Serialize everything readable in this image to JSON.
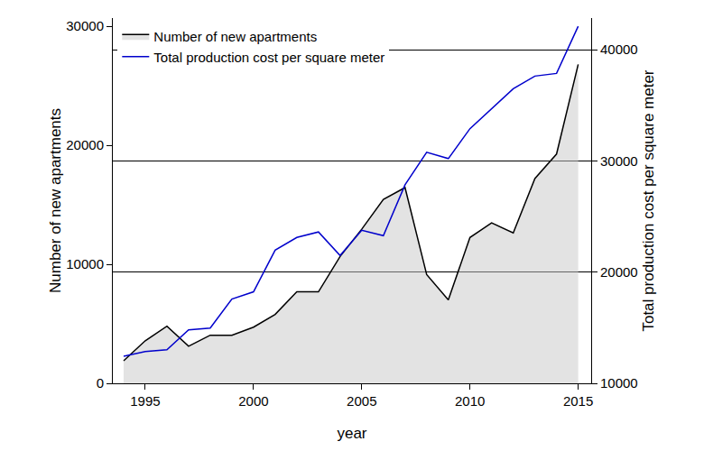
{
  "chart_data": {
    "type": "line",
    "x_label": "year",
    "y_label": "Number of new apartments",
    "y2_label": "Total production cost per square meter",
    "x": [
      1994,
      1995,
      1996,
      1997,
      1998,
      1999,
      2000,
      2001,
      2002,
      2003,
      2004,
      2005,
      2006,
      2007,
      2008,
      2009,
      2010,
      2011,
      2012,
      2013,
      2014,
      2015
    ],
    "series": [
      {
        "name": "Number of new apartments",
        "type": "area",
        "color": "#000000",
        "values": [
          1900,
          3580,
          4800,
          3120,
          4040,
          4040,
          4720,
          5790,
          7690,
          7690,
          10660,
          12950,
          15460,
          16450,
          9140,
          7010,
          12260,
          13480,
          12640,
          17210,
          19270,
          26810
        ]
      },
      {
        "name": "Total production cost per square meter",
        "type": "line",
        "color": "#0000cc",
        "axis": "y2",
        "values": [
          12440,
          12850,
          13020,
          14810,
          14970,
          17580,
          18230,
          21980,
          23120,
          23610,
          21490,
          23770,
          23280,
          27850,
          30780,
          30210,
          32900,
          34690,
          36490,
          37630,
          37870,
          42110
        ]
      }
    ],
    "xlim": [
      1993.5,
      2015.6
    ],
    "xticks": [
      1995,
      2000,
      2005,
      2010,
      2015
    ],
    "ylim": [
      0,
      30700
    ],
    "yticks": [
      0,
      10000,
      20000,
      30000
    ],
    "y2lim": [
      10000,
      42850
    ],
    "y2ticks": [
      10000,
      20000,
      30000,
      40000
    ],
    "grid": true,
    "legend": "top left"
  }
}
